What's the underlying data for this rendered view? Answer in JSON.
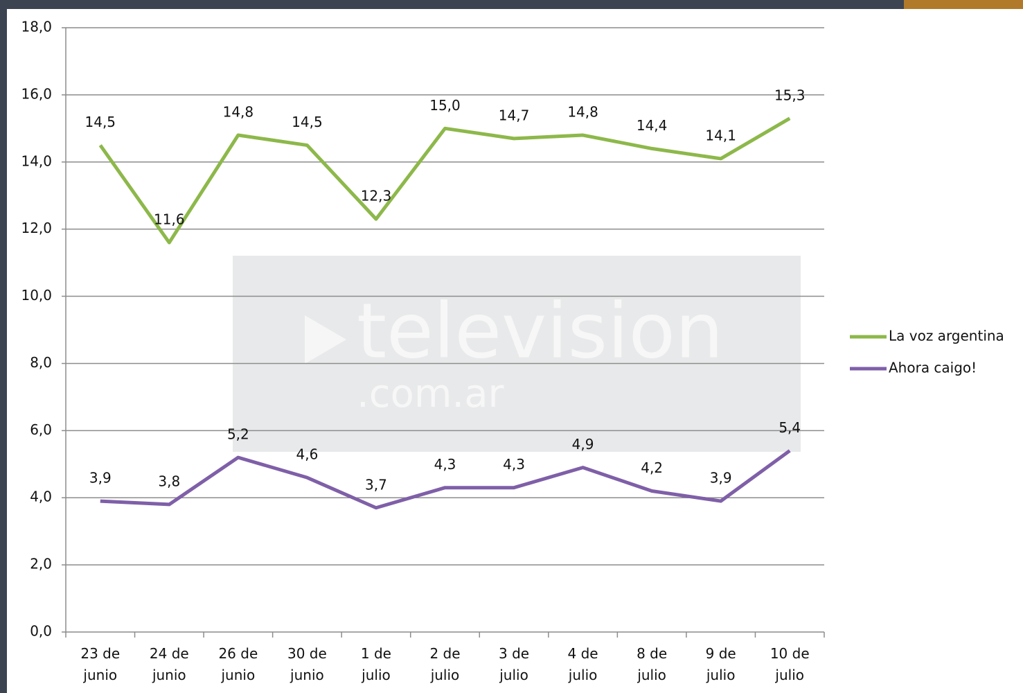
{
  "chart_data": {
    "type": "line",
    "categories": [
      "23 de junio",
      "24 de junio",
      "26 de junio",
      "30 de junio",
      "1 de julio",
      "2 de julio",
      "3 de julio",
      "4 de julio",
      "8 de julio",
      "9 de julio",
      "10 de julio"
    ],
    "series": [
      {
        "name": "La voz argentina",
        "color": "#8db84a",
        "values": [
          14.5,
          11.6,
          14.8,
          14.5,
          12.3,
          15.0,
          14.7,
          14.8,
          14.4,
          14.1,
          15.3
        ],
        "value_labels": [
          "14,5",
          "11,6",
          "14,8",
          "14,5",
          "12,3",
          "15,0",
          "14,7",
          "14,8",
          "14,4",
          "14,1",
          "15,3"
        ]
      },
      {
        "name": "Ahora caigo!",
        "color": "#7f5fa8",
        "values": [
          3.9,
          3.8,
          5.2,
          4.6,
          3.7,
          4.3,
          4.3,
          4.9,
          4.2,
          3.9,
          5.4
        ],
        "value_labels": [
          "3,9",
          "3,8",
          "5,2",
          "4,6",
          "3,7",
          "4,3",
          "4,3",
          "4,9",
          "4,2",
          "3,9",
          "5,4"
        ]
      }
    ],
    "ylim": [
      0,
      18
    ],
    "yticks": [
      {
        "value": 0,
        "label": "0,0"
      },
      {
        "value": 2,
        "label": "2,0"
      },
      {
        "value": 4,
        "label": "4,0"
      },
      {
        "value": 6,
        "label": "6,0"
      },
      {
        "value": 8,
        "label": "8,0"
      },
      {
        "value": 10,
        "label": "10,0"
      },
      {
        "value": 12,
        "label": "12,0"
      },
      {
        "value": 14,
        "label": "14,0"
      },
      {
        "value": 16,
        "label": "16,0"
      },
      {
        "value": 18,
        "label": "18,0"
      }
    ],
    "grid": true,
    "legend": "right",
    "watermark": "television",
    "watermark_sub": ".com.ar"
  }
}
